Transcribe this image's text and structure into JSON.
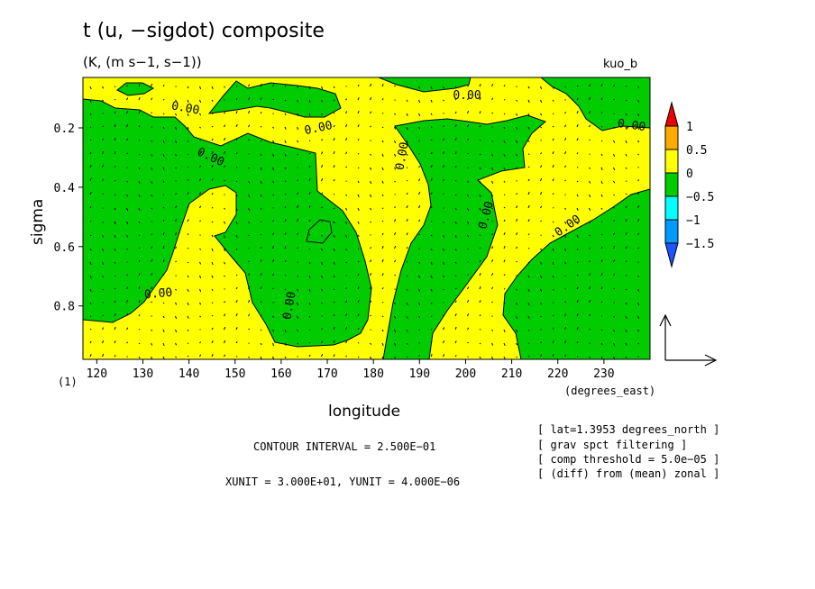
{
  "header": {
    "title": "t (u, −sigdot) composite",
    "subtitle": "(K, (m s−1, s−1))",
    "tag": "kuo_b",
    "panel_number": "(1)"
  },
  "footer": {
    "contour_interval": "CONTOUR INTERVAL = 2.500E−01",
    "units": "XUNIT = 3.000E+01, YUNIT = 4.000E−06"
  },
  "notes": [
    "[ lat=1.3953 degrees_north ]",
    "[ grav spct filtering ]",
    "[ comp threshold = 5.0e−05 ]",
    "[ (diff) from (mean) zonal ]"
  ],
  "colors": {
    "positive_fill": "#ffff00",
    "negative_fill": "#00cc00",
    "contour": "#000000"
  },
  "chart_data": {
    "type": "contour",
    "title": "t (u, −sigdot) composite",
    "xlabel": "longitude",
    "xunits": "(degrees_east)",
    "ylabel": "sigma",
    "xlim": [
      117,
      240
    ],
    "ylim": [
      0.03,
      0.98
    ],
    "y_inverted": true,
    "x_ticks": [
      120,
      130,
      140,
      150,
      160,
      170,
      180,
      190,
      200,
      210,
      220,
      230
    ],
    "y_ticks": [
      0.2,
      0.4,
      0.6,
      0.8
    ],
    "contour_labels": [
      "0.00"
    ],
    "colorbar": {
      "levels": [
        1,
        0.5,
        0,
        -0.5,
        -1,
        -1.5
      ],
      "colors": [
        "#ee0000",
        "#ffaa00",
        "#ffff00",
        "#00cc00",
        "#00ffff",
        "#0099ff",
        "#1a56ff"
      ]
    },
    "vector_reference": "XUNIT = 3.000E+01, YUNIT = 4.000E−06"
  }
}
